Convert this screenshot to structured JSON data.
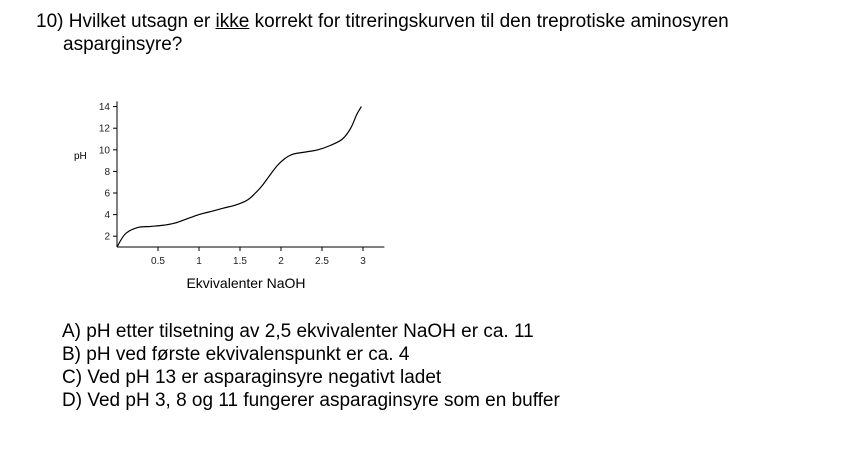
{
  "question": {
    "number": "10)",
    "text_before": "Hvilket utsagn er",
    "emphasis": "ikke",
    "text_after": "korrekt for titreringskurven til den treprotiske aminosyren",
    "line2": "asparginsyre?"
  },
  "answers": [
    {
      "letter": "A)",
      "text": "pH etter tilsetning av 2,5 ekvivalenter NaOH er ca. 11"
    },
    {
      "letter": "B)",
      "text": "pH ved første ekvivalenspunkt er ca. 4"
    },
    {
      "letter": "C)",
      "text": "Ved pH 13 er asparaginsyre negativt ladet"
    },
    {
      "letter": "D)",
      "text": "Ved pH 3, 8 og 11 fungerer asparaginsyre som en buffer"
    }
  ],
  "chart_data": {
    "type": "line",
    "xlabel": "Ekvivalenter NaOH",
    "ylabel": "pH",
    "xlim": [
      0,
      3.2
    ],
    "ylim": [
      1,
      14.5
    ],
    "x_ticks": [
      0.5,
      1,
      1.5,
      2,
      2.5,
      3
    ],
    "x_tick_labels": [
      "0.5",
      "1",
      "1.5",
      "2",
      "2.5",
      "3"
    ],
    "y_ticks": [
      2,
      4,
      6,
      8,
      10,
      12,
      14
    ],
    "y_tick_labels": [
      "2",
      "4",
      "6",
      "8",
      "10",
      "12",
      "14"
    ],
    "series": [
      {
        "x": [
          0,
          0.1,
          0.25,
          0.4,
          0.55,
          0.7,
          0.85,
          1.0,
          1.15,
          1.3,
          1.45,
          1.6,
          1.75,
          1.85,
          1.95,
          2.05,
          2.15,
          2.3,
          2.45,
          2.6,
          2.75,
          2.85,
          2.92,
          2.98
        ],
        "y": [
          1.0,
          2.2,
          2.8,
          2.9,
          3.0,
          3.2,
          3.6,
          4.0,
          4.3,
          4.6,
          4.9,
          5.4,
          6.5,
          7.5,
          8.5,
          9.2,
          9.6,
          9.8,
          10.0,
          10.4,
          11.0,
          12.0,
          13.2,
          14.0
        ]
      }
    ],
    "grid": false,
    "legend": false
  }
}
